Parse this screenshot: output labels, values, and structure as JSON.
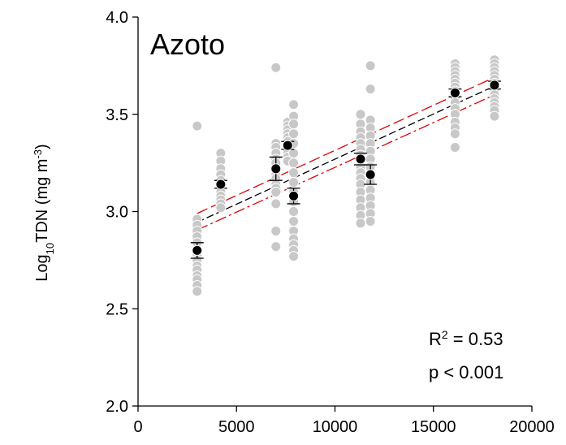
{
  "chart_data": {
    "type": "scatter",
    "title": "Azoto",
    "ylabel": {
      "prefix": "Log",
      "sub": "10",
      "main": "TDN (mg m",
      "sup": "-3",
      "suffix": ")"
    },
    "xlabel": "",
    "xlim": [
      0,
      20000
    ],
    "ylim": [
      2.0,
      4.0
    ],
    "x_ticks": [
      0,
      5000,
      10000,
      15000,
      20000
    ],
    "x_tick_labels": [
      "0",
      "5000",
      "10000",
      "15000",
      "20000"
    ],
    "y_ticks": [
      2.0,
      2.5,
      3.0,
      3.5,
      4.0
    ],
    "y_tick_labels": [
      "2.0",
      "2.5",
      "3.0",
      "3.5",
      "4.0"
    ],
    "grid": false,
    "annotations": {
      "r2_prefix": "R",
      "r2_sup": "2",
      "r2_value": " = 0.53",
      "p_text": "p < 0.001"
    },
    "colors": {
      "raw_points": "#c8c8c8",
      "mean_points": "#000000",
      "fit_line": "#000000",
      "ci_lines": "#e00000"
    },
    "raw_points": [
      {
        "x": 3000,
        "y": [
          3.44,
          2.96,
          2.93,
          2.9,
          2.87,
          2.84,
          2.8,
          2.77,
          2.75,
          2.72,
          2.7,
          2.67,
          2.65,
          2.62,
          2.59
        ]
      },
      {
        "x": 4200,
        "y": [
          3.3,
          3.26,
          3.22,
          3.19,
          3.16,
          3.14,
          3.12,
          3.1,
          3.08,
          3.06,
          3.04,
          3.02
        ]
      },
      {
        "x": 7000,
        "y": [
          3.74,
          3.35,
          3.33,
          3.3,
          3.27,
          3.25,
          3.22,
          3.19,
          3.17,
          3.14,
          3.12,
          3.1,
          3.04,
          2.9,
          2.82
        ]
      },
      {
        "x": 7600,
        "y": [
          3.46,
          3.44,
          3.42,
          3.4,
          3.38,
          3.36,
          3.34,
          3.32,
          3.3,
          3.28,
          3.26
        ]
      },
      {
        "x": 7900,
        "y": [
          3.55,
          3.49,
          3.45,
          3.4,
          3.35,
          3.3,
          3.25,
          3.2,
          3.15,
          3.1,
          3.05,
          3.0,
          2.95,
          2.9,
          2.86,
          2.83,
          2.8,
          2.77
        ]
      },
      {
        "x": 11300,
        "y": [
          3.5,
          3.45,
          3.41,
          3.38,
          3.35,
          3.32,
          3.29,
          3.26,
          3.23,
          3.2,
          3.17,
          3.14,
          3.1,
          3.06,
          3.02,
          2.98,
          2.94
        ]
      },
      {
        "x": 11800,
        "y": [
          3.75,
          3.63,
          3.47,
          3.43,
          3.39,
          3.35,
          3.31,
          3.27,
          3.23,
          3.19,
          3.15,
          3.11,
          3.07,
          3.03,
          2.99,
          2.95
        ]
      },
      {
        "x": 16100,
        "y": [
          3.76,
          3.74,
          3.72,
          3.7,
          3.68,
          3.66,
          3.64,
          3.62,
          3.6,
          3.58,
          3.56,
          3.53,
          3.5,
          3.46,
          3.43,
          3.4,
          3.33
        ]
      },
      {
        "x": 18100,
        "y": [
          3.78,
          3.76,
          3.74,
          3.72,
          3.7,
          3.68,
          3.66,
          3.64,
          3.62,
          3.6,
          3.58,
          3.56,
          3.54,
          3.52,
          3.49
        ]
      }
    ],
    "mean_points": [
      {
        "x": 3000,
        "y": 2.8,
        "err": 0.04
      },
      {
        "x": 4200,
        "y": 3.14,
        "err": 0.02
      },
      {
        "x": 7000,
        "y": 3.22,
        "err": 0.06
      },
      {
        "x": 7600,
        "y": 3.34,
        "err": 0.02
      },
      {
        "x": 7900,
        "y": 3.08,
        "err": 0.04
      },
      {
        "x": 11300,
        "y": 3.27,
        "err": 0.03
      },
      {
        "x": 11800,
        "y": 3.19,
        "err": 0.05
      },
      {
        "x": 16100,
        "y": 3.61,
        "err": 0.02
      },
      {
        "x": 18100,
        "y": 3.65,
        "err": 0.02
      }
    ],
    "fit_line": {
      "x": [
        3000,
        18100
      ],
      "y": [
        2.945,
        3.645
      ]
    },
    "ci_upper": {
      "x": [
        3000,
        18100
      ],
      "y": [
        2.99,
        3.69
      ]
    },
    "ci_lower": {
      "x": [
        3000,
        18100
      ],
      "y": [
        2.905,
        3.6
      ]
    }
  }
}
